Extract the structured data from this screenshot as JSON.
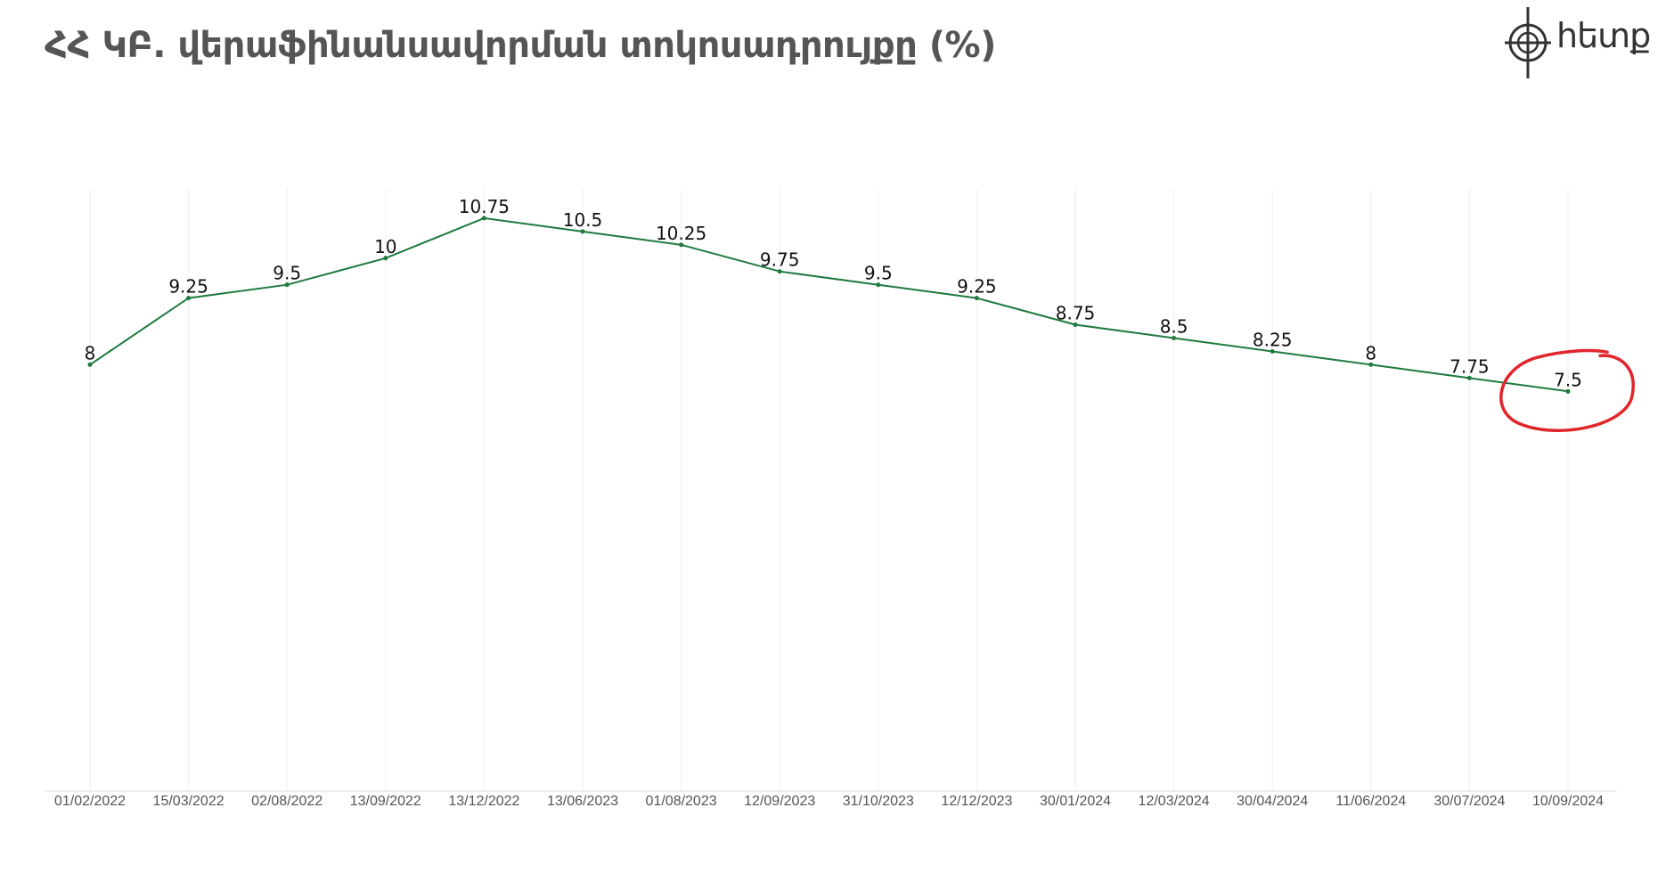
{
  "header": {
    "title": "ՀՀ ԿԲ. վերաֆինանսավորման տոկոսադրույքը  (%)"
  },
  "logo": {
    "word": "հետք",
    "icon": "crosshair-logo-icon"
  },
  "colors": {
    "line": "#1e7a3e",
    "grid": "#eeeeee",
    "highlight": "#e0262b",
    "title": "#555555"
  },
  "chart_data": {
    "type": "line",
    "title": "ՀՀ ԿԲ. վերաֆինանսավորման տոկոսադրույքը  (%)",
    "xlabel": "",
    "ylabel": "",
    "categories": [
      "01/02/2022",
      "15/03/2022",
      "02/08/2022",
      "13/09/2022",
      "13/12/2022",
      "13/06/2023",
      "01/08/2023",
      "12/09/2023",
      "31/10/2023",
      "12/12/2023",
      "30/01/2024",
      "12/03/2024",
      "30/04/2024",
      "11/06/2024",
      "30/07/2024",
      "10/09/2024"
    ],
    "series": [
      {
        "values": [
          8,
          9.25,
          9.5,
          10,
          10.75,
          10.5,
          10.25,
          9.75,
          9.5,
          9.25,
          8.75,
          8.5,
          8.25,
          8,
          7.75,
          7.5
        ],
        "labels": [
          "8",
          "9.25",
          "9.5",
          "10",
          "10.75",
          "10.5",
          "10.25",
          "9.75",
          "9.5",
          "9.25",
          "8.75",
          "8.5",
          "8.25",
          "8",
          "7.75",
          "7.5"
        ]
      }
    ],
    "ylim": [
      0,
      11.3
    ],
    "grid": "vertical",
    "highlighted_point": "10/09/2024"
  }
}
